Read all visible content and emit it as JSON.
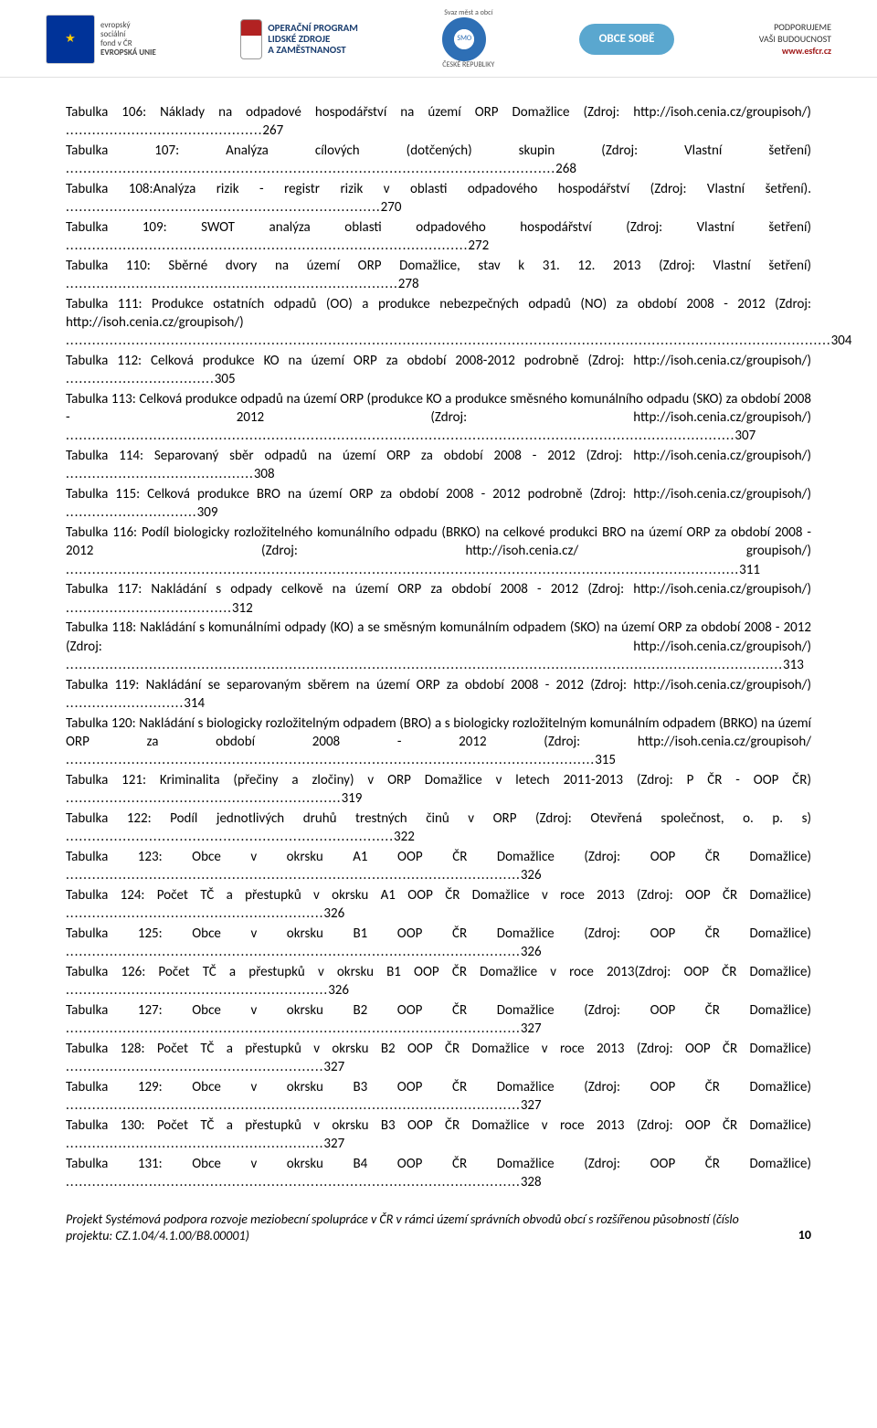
{
  "header": {
    "esf_text_lines": [
      "evropský",
      "sociální",
      "fond v ČR"
    ],
    "eu_label": "EVROPSKÁ UNIE",
    "op_lines": [
      "OPERAČNÍ PROGRAM",
      "LIDSKÉ ZDROJE",
      "A ZAMĚSTNANOST"
    ],
    "smo_badge": "SMO",
    "smo_lines": [
      "Svaz měst a obcí",
      "ČESKÉ REPUBLIKY"
    ],
    "obce_pill": "OBCE SOBĚ",
    "right_line1": "PODPORUJEME",
    "right_line2": "VAŠI BUDOUCNOST",
    "right_url": "www.esfcr.cz"
  },
  "toc": [
    {
      "text": "Tabulka 106: Náklady na odpadové hospodářství na území ORP Domažlice (Zdroj: http://isoh.cenia.cz/groupisoh/)",
      "page": "267"
    },
    {
      "text": "Tabulka 107: Analýza cílových (dotčených) skupin (Zdroj: Vlastní šetření)",
      "page": "268"
    },
    {
      "text": "Tabulka 108:Analýza rizik - registr rizik v oblasti odpadového hospodářství (Zdroj: Vlastní šetření).",
      "page": "270"
    },
    {
      "text": "Tabulka 109: SWOT analýza oblasti odpadového hospodářství (Zdroj: Vlastní šetření)",
      "page": "272"
    },
    {
      "text": "Tabulka 110: Sběrné dvory na území ORP Domažlice, stav k 31. 12. 2013 (Zdroj: Vlastní šetření)",
      "page": "278"
    },
    {
      "text": "Tabulka 111: Produkce ostatních odpadů (OO) a produkce nebezpečných odpadů (NO) za období 2008 - 2012 (Zdroj: http://isoh.cenia.cz/groupisoh/)",
      "page": "304"
    },
    {
      "text": "Tabulka 112: Celková produkce KO na území ORP za období 2008-2012 podrobně (Zdroj: http://isoh.cenia.cz/groupisoh/)",
      "page": "305"
    },
    {
      "text": "Tabulka 113: Celková produkce odpadů na území ORP (produkce KO a produkce směsného komunálního odpadu (SKO) za období 2008 - 2012 (Zdroj: http://isoh.cenia.cz/groupisoh/)",
      "page": "307"
    },
    {
      "text": "Tabulka 114: Separovaný sběr odpadů na území ORP za období 2008 - 2012 (Zdroj: http://isoh.cenia.cz/groupisoh/)",
      "page": "308"
    },
    {
      "text": "Tabulka 115: Celková produkce BRO na území ORP za období 2008 - 2012 podrobně (Zdroj: http://isoh.cenia.cz/groupisoh/)",
      "page": "309"
    },
    {
      "text": "Tabulka 116: Podíl biologicky rozložitelného komunálního odpadu (BRKO) na celkové produkci BRO na území ORP za období 2008 - 2012 (Zdroj: http://isoh.cenia.cz/ groupisoh/)",
      "page": "311"
    },
    {
      "text": "Tabulka 117: Nakládání s odpady celkově na území ORP za období 2008 - 2012 (Zdroj: http://isoh.cenia.cz/groupisoh/)",
      "page": "312"
    },
    {
      "text": "Tabulka 118: Nakládání s komunálními odpady (KO) a se směsným komunálním odpadem (SKO) na území ORP za období 2008 - 2012 (Zdroj: http://isoh.cenia.cz/groupisoh/)",
      "page": "313"
    },
    {
      "text": "Tabulka 119: Nakládání se separovaným sběrem na území ORP za období 2008 - 2012 (Zdroj: http://isoh.cenia.cz/groupisoh/)",
      "page": "314"
    },
    {
      "text": "Tabulka 120: Nakládání s biologicky rozložitelným odpadem (BRO) a s biologicky rozložitelným komunálním odpadem (BRKO) na území ORP za období 2008 - 2012 (Zdroj: http://isoh.cenia.cz/groupisoh/",
      "page": "315"
    },
    {
      "text": "Tabulka 121: Kriminalita (přečiny a zločiny) v ORP Domažlice v letech 2011-2013 (Zdroj: P ČR - OOP ČR)",
      "page": "319"
    },
    {
      "text": "Tabulka 122: Podíl jednotlivých druhů trestných činů v ORP (Zdroj: Otevřená společnost, o. p. s)",
      "page": "322"
    },
    {
      "text": "Tabulka 123: Obce v okrsku A1 OOP ČR Domažlice (Zdroj: OOP ČR Domažlice)",
      "page": "326"
    },
    {
      "text": "Tabulka 124: Počet TČ a přestupků v okrsku A1 OOP ČR Domažlice v roce 2013 (Zdroj: OOP ČR Domažlice)",
      "page": "326"
    },
    {
      "text": "Tabulka 125: Obce v okrsku B1 OOP ČR Domažlice (Zdroj: OOP ČR Domažlice)",
      "page": "326"
    },
    {
      "text": "Tabulka 126: Počet TČ a přestupků v okrsku B1 OOP ČR Domažlice v roce 2013(Zdroj: OOP ČR Domažlice)",
      "page": "326"
    },
    {
      "text": "Tabulka 127: Obce v okrsku B2 OOP ČR Domažlice (Zdroj: OOP ČR Domažlice)",
      "page": "327"
    },
    {
      "text": "Tabulka 128: Počet TČ a přestupků v okrsku B2 OOP ČR Domažlice v roce 2013 (Zdroj: OOP ČR Domažlice)",
      "page": "327"
    },
    {
      "text": "Tabulka 129: Obce v okrsku B3 OOP ČR Domažlice (Zdroj: OOP ČR Domažlice)",
      "page": "327"
    },
    {
      "text": "Tabulka 130: Počet TČ a přestupků v okrsku B3 OOP ČR Domažlice v roce 2013 (Zdroj: OOP ČR Domažlice)",
      "page": "327"
    },
    {
      "text": "Tabulka 131: Obce v okrsku B4 OOP ČR Domažlice (Zdroj: OOP ČR Domažlice)",
      "page": "328"
    }
  ],
  "footer": {
    "text": "Projekt Systémová podpora rozvoje meziobecní spolupráce v ČR v rámci území správních obvodů obcí s rozšířenou působností (číslo projektu: CZ.1.04/4.1.00/B8.00001)",
    "page_number": "10"
  }
}
